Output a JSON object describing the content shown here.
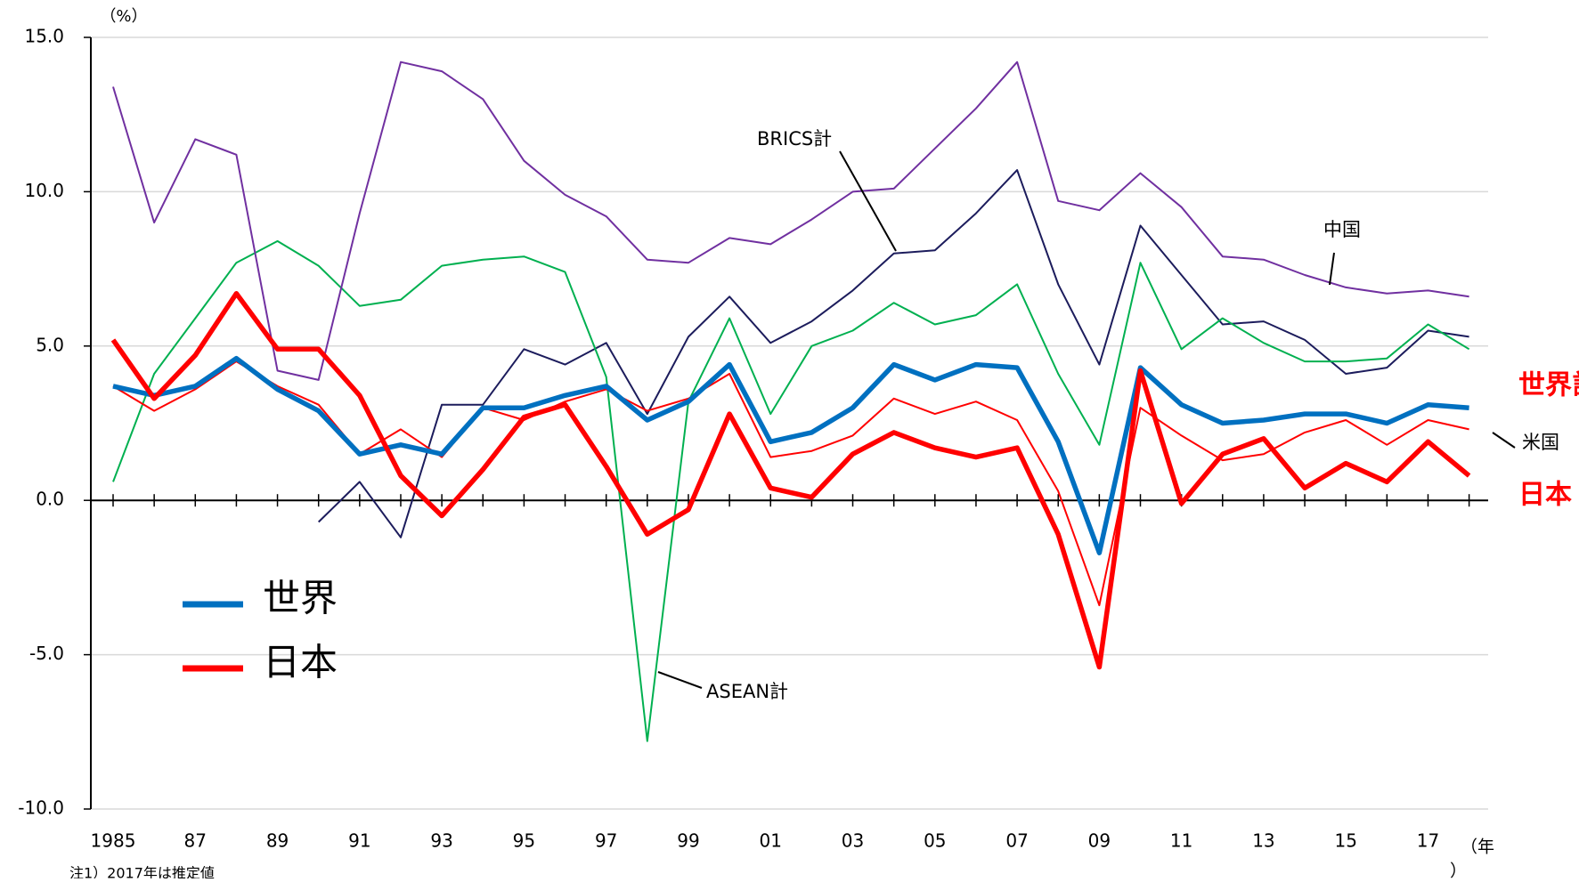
{
  "chart_data": {
    "type": "line",
    "y_unit": "（%）",
    "x_unit_top": "（年",
    "x_unit_bottom": "）",
    "note": "注1）2017年は推定値",
    "categories": [
      "1985",
      null,
      "87",
      null,
      "89",
      null,
      "91",
      null,
      "93",
      null,
      "95",
      null,
      "97",
      null,
      "99",
      null,
      "01",
      null,
      "03",
      null,
      "05",
      null,
      "07",
      null,
      "09",
      null,
      "11",
      null,
      "13",
      null,
      "15",
      null,
      "17",
      null
    ],
    "series": [
      {
        "name": "世界",
        "color": "#0070c0",
        "legend": true,
        "values": [
          3.7,
          3.4,
          3.7,
          4.6,
          3.6,
          2.9,
          1.5,
          1.8,
          1.5,
          3.0,
          3.0,
          3.4,
          3.7,
          2.6,
          3.2,
          4.4,
          1.9,
          2.2,
          3.0,
          4.4,
          3.9,
          4.4,
          4.3,
          1.9,
          -1.7,
          4.3,
          3.1,
          2.5,
          2.6,
          2.8,
          2.8,
          2.5,
          3.1,
          3.0
        ]
      },
      {
        "name": "日本",
        "color": "#ff0000",
        "legend": true,
        "values": [
          5.2,
          3.3,
          4.7,
          6.7,
          4.9,
          4.9,
          3.4,
          0.8,
          -0.5,
          1.0,
          2.7,
          3.1,
          1.1,
          -1.1,
          -0.3,
          2.8,
          0.4,
          0.1,
          1.5,
          2.2,
          1.7,
          1.4,
          1.7,
          -1.1,
          -5.4,
          4.2,
          -0.1,
          1.5,
          2.0,
          0.4,
          1.2,
          0.6,
          1.9,
          0.8
        ]
      },
      {
        "name": "米国",
        "color": "#ff0000",
        "legend": false,
        "values": [
          3.7,
          2.9,
          3.6,
          4.5,
          3.7,
          3.1,
          1.5,
          2.3,
          1.4,
          3.0,
          2.6,
          3.2,
          3.6,
          2.9,
          3.3,
          4.1,
          1.4,
          1.6,
          2.1,
          3.3,
          2.8,
          3.2,
          2.6,
          0.3,
          -3.4,
          3.0,
          2.1,
          1.3,
          1.5,
          2.2,
          2.6,
          1.8,
          2.6,
          2.3
        ]
      },
      {
        "name": "中国",
        "color": "#7030a0",
        "legend": false,
        "values": [
          13.4,
          9.0,
          11.7,
          11.2,
          4.2,
          3.9,
          9.3,
          14.2,
          13.9,
          13.0,
          11.0,
          9.9,
          9.2,
          7.8,
          7.7,
          8.5,
          8.3,
          9.1,
          10.0,
          10.1,
          11.4,
          12.7,
          14.2,
          9.7,
          9.4,
          10.6,
          9.5,
          7.9,
          7.8,
          7.3,
          6.9,
          6.7,
          6.8,
          6.6
        ]
      },
      {
        "name": "ASEAN計",
        "color": "#00b050",
        "legend": false,
        "values": [
          0.6,
          4.1,
          5.9,
          7.7,
          8.4,
          7.6,
          6.3,
          6.5,
          7.6,
          7.8,
          7.9,
          7.4,
          4.0,
          -7.8,
          3.2,
          5.9,
          2.8,
          5.0,
          5.5,
          6.4,
          5.7,
          6.0,
          7.0,
          4.1,
          1.8,
          7.7,
          4.9,
          5.9,
          5.1,
          4.5,
          4.5,
          4.6,
          5.7,
          4.9
        ]
      },
      {
        "name": "BRICS計",
        "color": "#1c1c5c",
        "legend": false,
        "values": [
          null,
          null,
          null,
          null,
          null,
          -0.7,
          0.6,
          -1.2,
          3.1,
          3.1,
          4.9,
          4.4,
          5.1,
          2.8,
          5.3,
          6.6,
          5.1,
          5.8,
          6.8,
          8.0,
          8.1,
          9.3,
          10.7,
          7.0,
          4.4,
          8.9,
          7.3,
          5.7,
          5.8,
          5.2,
          4.1,
          4.3,
          5.5,
          5.3
        ]
      }
    ],
    "annotations": [
      "世界計",
      "日本"
    ],
    "ylim": [
      -10,
      15
    ],
    "yticks": [
      {
        "value": -10,
        "label": "-10.0"
      },
      {
        "value": -5,
        "label": "-5.0"
      },
      {
        "value": 0,
        "label": "0.0"
      },
      {
        "value": 5,
        "label": "5.0"
      },
      {
        "value": 10,
        "label": "10.0"
      },
      {
        "value": 15,
        "label": "15.0"
      }
    ],
    "grid": true
  }
}
